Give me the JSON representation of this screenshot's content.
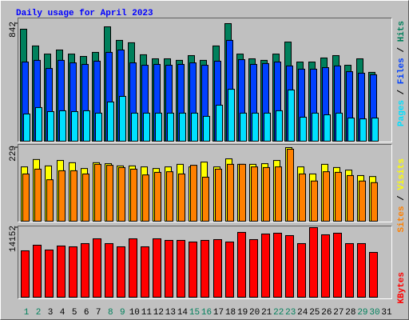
{
  "chart_data": [
    {
      "type": "bar",
      "title": "Daily usage for April 2023",
      "ylim": [
        0,
        842
      ],
      "yticks": [
        842
      ],
      "legend_separator": " / ",
      "series": [
        {
          "name": "Hits",
          "color": "#00805c",
          "values": [
            802,
            682,
            624,
            653,
            624,
            607,
            636,
            819,
            722,
            705,
            619,
            590,
            590,
            579,
            613,
            579,
            682,
            842,
            624,
            590,
            579,
            624,
            710,
            567,
            567,
            596,
            613,
            544,
            590,
            493,
            null
          ]
        },
        {
          "name": "Files",
          "color": "#0040ff",
          "values": [
            567,
            579,
            521,
            579,
            561,
            550,
            573,
            636,
            653,
            561,
            544,
            550,
            544,
            550,
            561,
            544,
            573,
            722,
            584,
            550,
            556,
            567,
            539,
            516,
            516,
            527,
            539,
            498,
            487,
            476,
            null
          ]
        },
        {
          "name": "Pages",
          "color": "#00e0ff",
          "values": [
            195,
            241,
            212,
            218,
            212,
            218,
            201,
            281,
            321,
            201,
            201,
            201,
            201,
            201,
            201,
            178,
            258,
            372,
            201,
            201,
            201,
            218,
            367,
            172,
            201,
            189,
            201,
            166,
            160,
            166,
            null
          ]
        }
      ]
    },
    {
      "type": "bar",
      "ylim": [
        0,
        229
      ],
      "yticks": [
        229
      ],
      "legend_separator": " / ",
      "series": [
        {
          "name": "Visits",
          "color": "#ffff00",
          "values": [
            169,
            192,
            172,
            189,
            182,
            164,
            182,
            179,
            172,
            172,
            169,
            164,
            169,
            177,
            169,
            184,
            169,
            194,
            177,
            177,
            179,
            189,
            229,
            169,
            147,
            177,
            167,
            159,
            142,
            139,
            null
          ]
        },
        {
          "name": "Sites",
          "color": "#ff8000",
          "values": [
            147,
            162,
            129,
            157,
            157,
            147,
            177,
            174,
            167,
            162,
            144,
            152,
            154,
            147,
            174,
            137,
            162,
            177,
            177,
            169,
            167,
            169,
            224,
            147,
            125,
            154,
            152,
            142,
            125,
            120,
            null
          ]
        }
      ]
    },
    {
      "type": "bar",
      "ylim": [
        0,
        14152
      ],
      "yticks": [
        14152
      ],
      "legend_separator": " / ",
      "categories": [
        "1",
        "2",
        "3",
        "4",
        "5",
        "6",
        "7",
        "8",
        "9",
        "10",
        "11",
        "12",
        "13",
        "14",
        "15",
        "16",
        "17",
        "18",
        "19",
        "20",
        "21",
        "22",
        "23",
        "24",
        "25",
        "26",
        "27",
        "28",
        "29",
        "30",
        "31"
      ],
      "category_colors": [
        "#00805c",
        "#00805c",
        "#000000",
        "#000000",
        "#000000",
        "#000000",
        "#000000",
        "#00805c",
        "#00805c",
        "#000000",
        "#000000",
        "#000000",
        "#000000",
        "#000000",
        "#00805c",
        "#00805c",
        "#000000",
        "#000000",
        "#000000",
        "#000000",
        "#000000",
        "#00805c",
        "#00805c",
        "#000000",
        "#000000",
        "#000000",
        "#000000",
        "#000000",
        "#00805c",
        "#00805c",
        "#000000"
      ],
      "series": [
        {
          "name": "KBytes",
          "color": "#ff0000",
          "values": [
            9437,
            10576,
            9599,
            10413,
            10250,
            10901,
            11877,
            10901,
            10250,
            11877,
            10250,
            11877,
            11552,
            11552,
            11226,
            11552,
            11714,
            11226,
            13179,
            11714,
            12853,
            13016,
            12528,
            10901,
            14152,
            12691,
            13016,
            10901,
            10901,
            9111,
            null
          ]
        }
      ]
    }
  ]
}
